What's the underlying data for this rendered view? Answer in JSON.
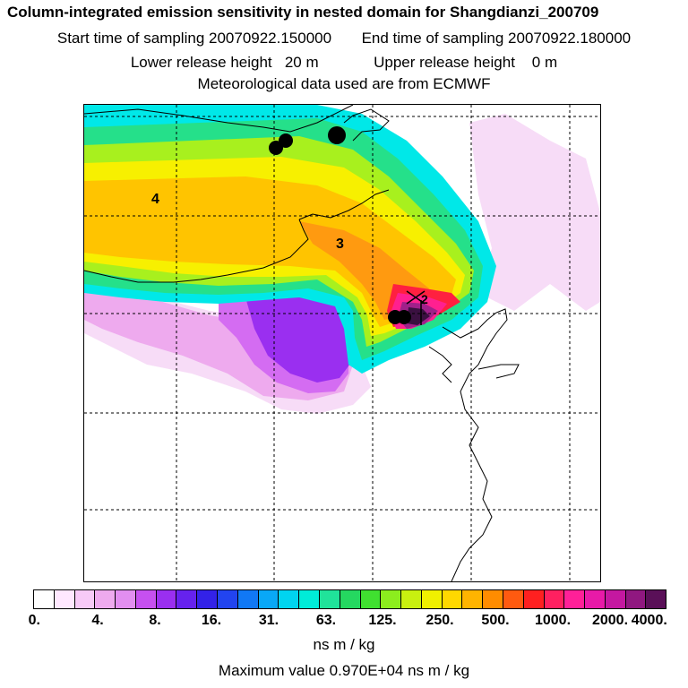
{
  "header": {
    "title": "Column-integrated emission sensitivity in nested domain for Shangdianzi_200709",
    "start_label": "Start time of sampling 20070922.150000",
    "end_label": "End time of sampling 20070922.180000",
    "lower_label": "Lower release height   20 m",
    "upper_label": "Upper release height    0 m",
    "met_label": "Meteorological data used are from ECMWF"
  },
  "map": {
    "contour_labels": [
      "4",
      "3",
      "2"
    ],
    "plume_colors": {
      "outer_faint": "#f7dcf7",
      "light_pink": "#eeaaee",
      "magenta": "#d46cf2",
      "violet": "#9a2ff0",
      "cyan": "#00e8e8",
      "green": "#25e08a",
      "lime": "#a8f01e",
      "yellow": "#f7f000",
      "orange": "#ffb000",
      "dark_orange": "#ff7a10",
      "red": "#ff2040",
      "pink": "#ff2090",
      "purple": "#a0208a",
      "dark_purple": "#3a1040"
    }
  },
  "colorbar": {
    "colors": [
      "#ffffff",
      "#ffe8ff",
      "#f7caf7",
      "#eeaaee",
      "#e28ef0",
      "#c650f0",
      "#9a2ff0",
      "#6622ee",
      "#3322e8",
      "#2244f0",
      "#1178f5",
      "#09a8f7",
      "#00d4f0",
      "#00ecd8",
      "#20e39a",
      "#25d860",
      "#40e030",
      "#8ced1e",
      "#c8f010",
      "#f0f000",
      "#ffd800",
      "#ffb400",
      "#ff8c00",
      "#ff5a10",
      "#ff2020",
      "#ff2060",
      "#ff2098",
      "#e81aa8",
      "#c418a0",
      "#901880",
      "#5a1058"
    ],
    "ticks": [
      "0.",
      "4.",
      "8.",
      "16.",
      "31.",
      "63.",
      "125.",
      "250.",
      "500.",
      "1000.",
      "2000.",
      "4000."
    ],
    "unit": "ns m / kg"
  },
  "footer": {
    "max_value": "Maximum value  0.970E+04 ns m / kg"
  }
}
